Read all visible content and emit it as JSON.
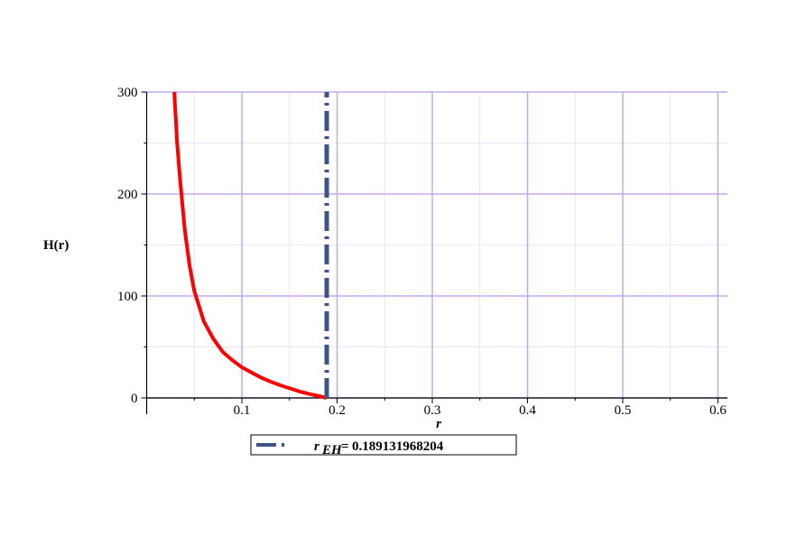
{
  "chart_data": {
    "type": "line",
    "xlabel": "r",
    "ylabel": "H(r)",
    "xlim": [
      0,
      0.61
    ],
    "ylim": [
      0,
      300
    ],
    "xticks": [
      0.1,
      0.2,
      0.3,
      0.4,
      0.5,
      0.6
    ],
    "yticks": [
      0,
      100,
      200,
      300
    ],
    "minor_xticks": [
      0.05,
      0.15,
      0.25,
      0.35,
      0.45,
      0.55
    ],
    "minor_yticks": [
      50,
      150,
      250
    ],
    "grid": true,
    "series": [
      {
        "color": "#ff0000",
        "x": [
          0.029,
          0.032,
          0.035,
          0.04,
          0.045,
          0.05,
          0.06,
          0.07,
          0.08,
          0.09,
          0.1,
          0.11,
          0.12,
          0.13,
          0.14,
          0.15,
          0.16,
          0.17,
          0.18,
          0.189
        ],
        "values": [
          300,
          250,
          215,
          165,
          130,
          105,
          75,
          58,
          45,
          37,
          30,
          25,
          20,
          16,
          12.5,
          9.5,
          6.5,
          4,
          2,
          0
        ]
      },
      {
        "name": "r",
        "subscript": "EH",
        "relation": "=",
        "color": "#3c5488",
        "style": "dashdot",
        "x": [
          0.189131968204,
          0.189131968204
        ],
        "values": [
          0,
          300
        ]
      }
    ]
  }
}
